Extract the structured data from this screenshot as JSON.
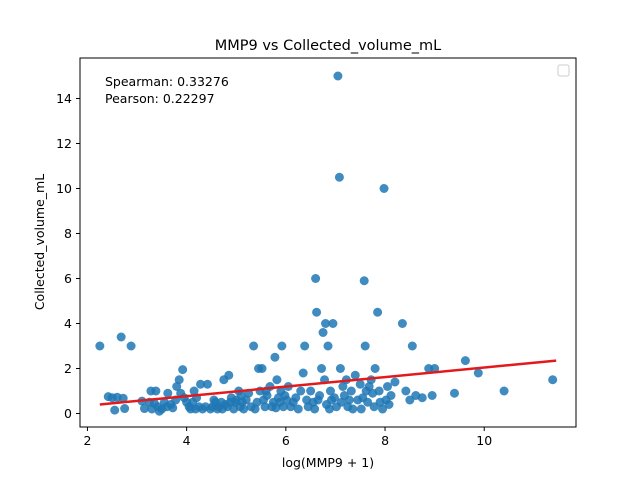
{
  "chart_data": {
    "type": "scatter",
    "title": "MMP9 vs Collected_volume_mL",
    "xlabel": "log(MMP9 + 1)",
    "ylabel": "Collected_volume_mL",
    "xlim": [
      1.85,
      11.85
    ],
    "ylim": [
      -0.6,
      15.8
    ],
    "xticks": [
      2,
      4,
      6,
      8,
      10
    ],
    "yticks": [
      0,
      2,
      4,
      6,
      8,
      10,
      12,
      14
    ],
    "grid": false,
    "legend": "top-right, empty",
    "annotations": [
      "Spearman: 0.33276",
      "Pearson: 0.22297"
    ],
    "colors": {
      "points": "#1f77b4",
      "fit_line": "#e31a1c"
    },
    "fit_line": {
      "x": [
        2.25,
        11.45
      ],
      "y": [
        0.4,
        2.35
      ]
    },
    "points": [
      [
        2.25,
        3.0
      ],
      [
        2.42,
        0.75
      ],
      [
        2.5,
        0.7
      ],
      [
        2.55,
        0.15
      ],
      [
        2.6,
        0.72
      ],
      [
        2.68,
        3.4
      ],
      [
        2.72,
        0.68
      ],
      [
        2.75,
        0.22
      ],
      [
        2.88,
        3.0
      ],
      [
        3.1,
        0.55
      ],
      [
        3.15,
        0.22
      ],
      [
        3.25,
        0.5
      ],
      [
        3.28,
        1.0
      ],
      [
        3.3,
        0.2
      ],
      [
        3.35,
        0.45
      ],
      [
        3.38,
        1.0
      ],
      [
        3.42,
        0.3
      ],
      [
        3.45,
        0.1
      ],
      [
        3.5,
        0.2
      ],
      [
        3.55,
        0.5
      ],
      [
        3.6,
        0.3
      ],
      [
        3.62,
        0.9
      ],
      [
        3.68,
        0.4
      ],
      [
        3.72,
        0.25
      ],
      [
        3.78,
        0.6
      ],
      [
        3.8,
        1.2
      ],
      [
        3.85,
        1.5
      ],
      [
        3.88,
        0.9
      ],
      [
        3.92,
        1.95
      ],
      [
        3.95,
        0.7
      ],
      [
        4.0,
        0.5
      ],
      [
        4.05,
        0.3
      ],
      [
        4.08,
        0.2
      ],
      [
        4.12,
        0.5
      ],
      [
        4.15,
        1.0
      ],
      [
        4.18,
        0.2
      ],
      [
        4.2,
        0.7
      ],
      [
        4.25,
        0.3
      ],
      [
        4.28,
        1.3
      ],
      [
        4.32,
        0.2
      ],
      [
        4.38,
        0.3
      ],
      [
        4.42,
        1.3
      ],
      [
        4.48,
        0.2
      ],
      [
        4.52,
        0.3
      ],
      [
        4.55,
        0.6
      ],
      [
        4.58,
        0.5
      ],
      [
        4.62,
        0.2
      ],
      [
        4.65,
        0.3
      ],
      [
        4.7,
        0.5
      ],
      [
        4.72,
        0.2
      ],
      [
        4.75,
        1.5
      ],
      [
        4.78,
        0.4
      ],
      [
        4.82,
        0.3
      ],
      [
        4.85,
        1.7
      ],
      [
        4.88,
        0.5
      ],
      [
        4.9,
        0.7
      ],
      [
        4.95,
        0.2
      ],
      [
        4.98,
        0.5
      ],
      [
        5.0,
        0.6
      ],
      [
        5.05,
        1.0
      ],
      [
        5.08,
        0.3
      ],
      [
        5.1,
        0.8
      ],
      [
        5.12,
        0.5
      ],
      [
        5.15,
        0.2
      ],
      [
        5.2,
        0.6
      ],
      [
        5.25,
        0.9
      ],
      [
        5.3,
        0.3
      ],
      [
        5.35,
        3.0
      ],
      [
        5.38,
        0.2
      ],
      [
        5.42,
        0.5
      ],
      [
        5.45,
        2.0
      ],
      [
        5.48,
        1.0
      ],
      [
        5.52,
        2.0
      ],
      [
        5.55,
        0.6
      ],
      [
        5.58,
        0.3
      ],
      [
        5.6,
        1.0
      ],
      [
        5.62,
        0.8
      ],
      [
        5.68,
        1.2
      ],
      [
        5.72,
        0.3
      ],
      [
        5.75,
        0.5
      ],
      [
        5.78,
        2.5
      ],
      [
        5.8,
        0.25
      ],
      [
        5.82,
        1.5
      ],
      [
        5.85,
        0.7
      ],
      [
        5.88,
        0.5
      ],
      [
        5.9,
        1.0
      ],
      [
        5.92,
        3.0
      ],
      [
        5.95,
        0.3
      ],
      [
        5.98,
        0.8
      ],
      [
        6.02,
        0.6
      ],
      [
        6.05,
        1.2
      ],
      [
        6.1,
        0.3
      ],
      [
        6.15,
        0.5
      ],
      [
        6.2,
        0.7
      ],
      [
        6.25,
        0.2
      ],
      [
        6.3,
        1.0
      ],
      [
        6.35,
        1.8
      ],
      [
        6.38,
        3.0
      ],
      [
        6.42,
        0.6
      ],
      [
        6.45,
        0.3
      ],
      [
        6.5,
        1.0
      ],
      [
        6.55,
        0.5
      ],
      [
        6.58,
        0.2
      ],
      [
        6.6,
        6.0
      ],
      [
        6.62,
        4.5
      ],
      [
        6.65,
        0.6
      ],
      [
        6.68,
        0.8
      ],
      [
        6.72,
        2.0
      ],
      [
        6.75,
        3.6
      ],
      [
        6.78,
        1.5
      ],
      [
        6.8,
        4.0
      ],
      [
        6.82,
        0.4
      ],
      [
        6.85,
        3.0
      ],
      [
        6.88,
        0.2
      ],
      [
        6.9,
        1.0
      ],
      [
        6.92,
        0.6
      ],
      [
        6.95,
        4.0
      ],
      [
        6.98,
        0.7
      ],
      [
        7.02,
        0.3
      ],
      [
        7.05,
        15.0
      ],
      [
        7.08,
        10.5
      ],
      [
        7.1,
        2.0
      ],
      [
        7.12,
        0.5
      ],
      [
        7.15,
        1.2
      ],
      [
        7.18,
        0.8
      ],
      [
        7.22,
        1.5
      ],
      [
        7.25,
        0.3
      ],
      [
        7.28,
        0.6
      ],
      [
        7.32,
        1.0
      ],
      [
        7.35,
        0.2
      ],
      [
        7.4,
        1.7
      ],
      [
        7.45,
        0.6
      ],
      [
        7.5,
        1.3
      ],
      [
        7.52,
        0.2
      ],
      [
        7.55,
        0.7
      ],
      [
        7.58,
        5.9
      ],
      [
        7.6,
        3.0
      ],
      [
        7.62,
        1.0
      ],
      [
        7.65,
        0.5
      ],
      [
        7.68,
        1.2
      ],
      [
        7.72,
        1.5
      ],
      [
        7.75,
        0.9
      ],
      [
        7.78,
        0.3
      ],
      [
        7.8,
        2.0
      ],
      [
        7.85,
        4.5
      ],
      [
        7.88,
        1.0
      ],
      [
        7.9,
        0.5
      ],
      [
        7.95,
        0.2
      ],
      [
        7.98,
        10.0
      ],
      [
        8.02,
        0.6
      ],
      [
        8.05,
        1.2
      ],
      [
        8.08,
        0.4
      ],
      [
        8.12,
        0.8
      ],
      [
        8.2,
        1.4
      ],
      [
        8.35,
        4.0
      ],
      [
        8.42,
        1.0
      ],
      [
        8.5,
        0.6
      ],
      [
        8.55,
        3.0
      ],
      [
        8.62,
        0.8
      ],
      [
        8.75,
        0.7
      ],
      [
        8.88,
        2.0
      ],
      [
        8.95,
        0.8
      ],
      [
        9.0,
        2.0
      ],
      [
        9.4,
        0.9
      ],
      [
        9.62,
        2.35
      ],
      [
        9.88,
        1.8
      ],
      [
        10.4,
        1.0
      ],
      [
        11.38,
        1.5
      ]
    ]
  }
}
